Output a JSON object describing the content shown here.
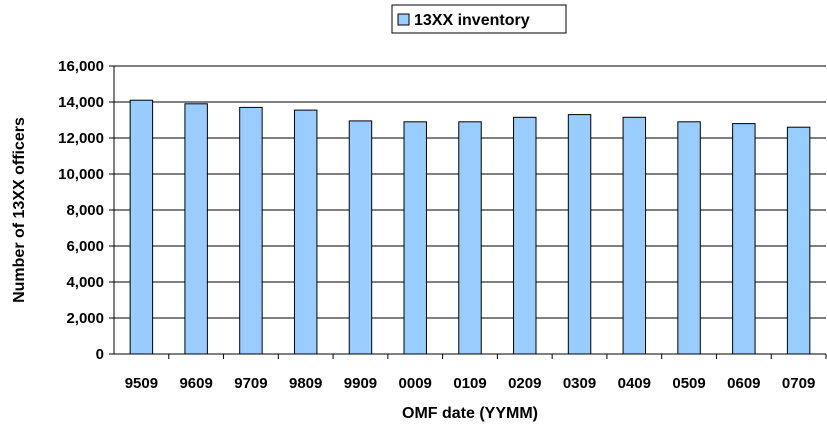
{
  "chart_data": {
    "type": "bar",
    "xlabel": "OMF date (YYMM)",
    "ylabel": "Number of 13XX officers",
    "categories": [
      "9509",
      "9609",
      "9709",
      "9809",
      "9909",
      "0009",
      "0109",
      "0209",
      "0309",
      "0409",
      "0509",
      "0609",
      "0709"
    ],
    "series": [
      {
        "name": "13XX inventory",
        "values": [
          14100,
          13900,
          13700,
          13550,
          12950,
          12900,
          12900,
          13150,
          13300,
          13150,
          12900,
          12800,
          12600
        ],
        "color": "#99ccff",
        "stroke": "#000000"
      }
    ],
    "ylim": [
      0,
      16000
    ],
    "yticks": [
      "0",
      "2,000",
      "4,000",
      "6,000",
      "8,000",
      "10,000",
      "12,000",
      "14,000",
      "16,000"
    ],
    "grid": true,
    "legend_position": "top-center"
  }
}
